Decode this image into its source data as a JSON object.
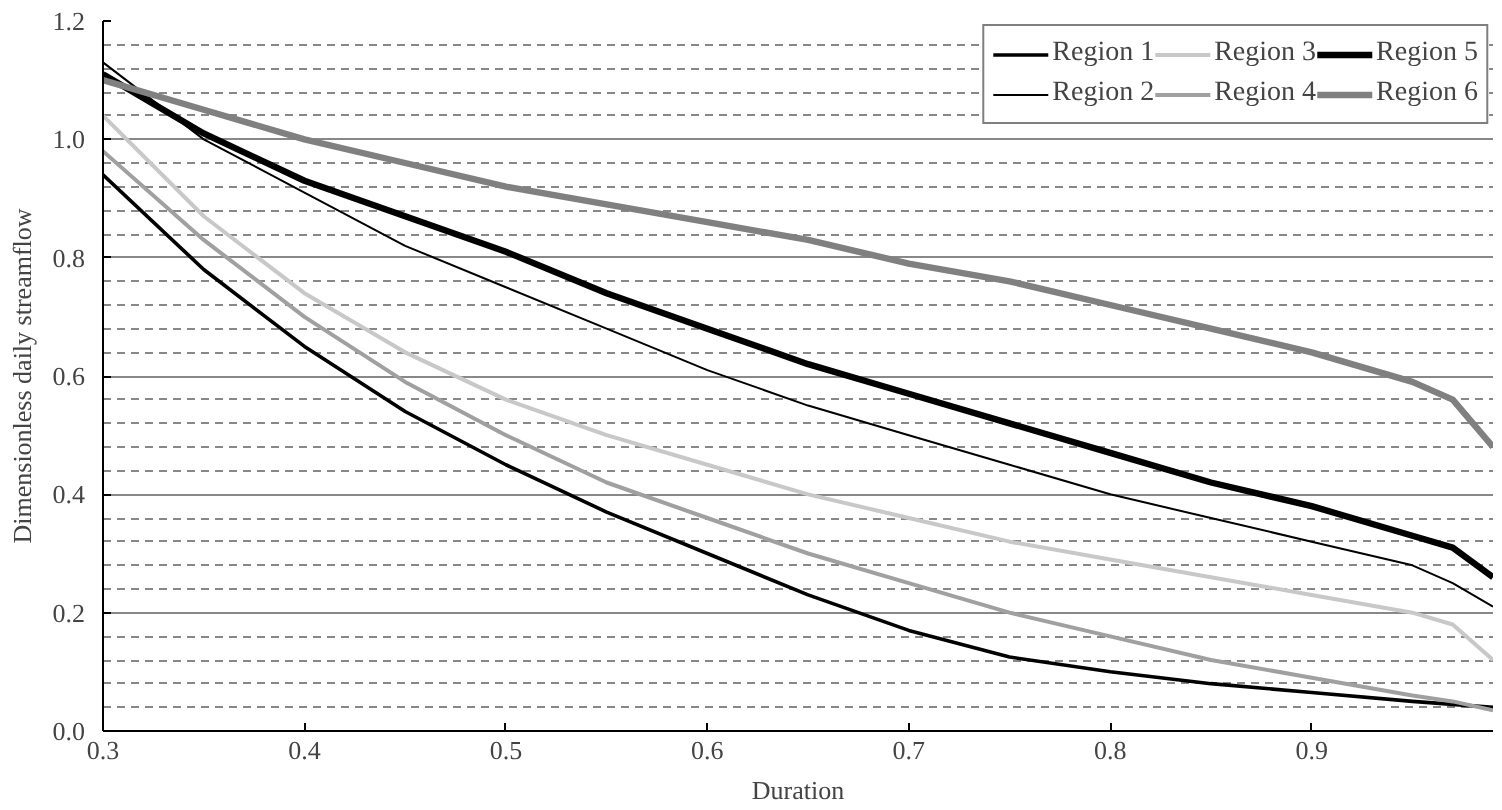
{
  "chart_data": {
    "type": "line",
    "xlabel": "Duration",
    "ylabel": "Dimensionless daily streamflow",
    "x": [
      0.3,
      0.35,
      0.4,
      0.45,
      0.5,
      0.55,
      0.6,
      0.65,
      0.7,
      0.75,
      0.8,
      0.85,
      0.9,
      0.95,
      0.97,
      0.99
    ],
    "xlim": [
      0.3,
      0.99
    ],
    "xticks": [
      0.3,
      0.4,
      0.5,
      0.6,
      0.7,
      0.8,
      0.9
    ],
    "ylim": [
      0,
      1.2
    ],
    "yticks": [
      {
        "value": 0,
        "label": "0.0"
      },
      {
        "value": 0.2,
        "label": "0.2"
      },
      {
        "value": 0.4,
        "label": "0.4"
      },
      {
        "value": 0.6,
        "label": "0.6"
      },
      {
        "value": 0.8,
        "label": "0.8"
      },
      {
        "value": 1.0,
        "label": "1.0"
      },
      {
        "value": 1.2,
        "label": "1.2"
      }
    ],
    "grid": "y",
    "legend": "top right",
    "marker": "none",
    "line_style": "solid",
    "series": [
      {
        "name": "Region 1",
        "color": "#000000",
        "values": [
          0.94,
          0.78,
          0.65,
          0.54,
          0.45,
          0.37,
          0.3,
          0.23,
          0.17,
          0.125,
          0.1,
          0.08,
          0.065,
          0.05,
          0.045,
          0.04
        ]
      },
      {
        "name": "Region 2",
        "color": "#000000",
        "values": [
          1.13,
          1.0,
          0.91,
          0.82,
          0.75,
          0.68,
          0.61,
          0.55,
          0.5,
          0.45,
          0.4,
          0.36,
          0.32,
          0.28,
          0.25,
          0.21
        ]
      },
      {
        "name": "Region 3",
        "color": "#c8c8c8",
        "values": [
          1.04,
          0.87,
          0.74,
          0.64,
          0.56,
          0.5,
          0.45,
          0.4,
          0.36,
          0.32,
          0.29,
          0.26,
          0.23,
          0.2,
          0.18,
          0.12
        ]
      },
      {
        "name": "Region 4",
        "color": "#a0a0a0",
        "values": [
          0.98,
          0.83,
          0.7,
          0.59,
          0.5,
          0.42,
          0.36,
          0.3,
          0.25,
          0.2,
          0.16,
          0.12,
          0.09,
          0.06,
          0.05,
          0.035
        ]
      },
      {
        "name": "Region 5",
        "color": "#000000",
        "values": [
          1.11,
          1.01,
          0.93,
          0.87,
          0.81,
          0.74,
          0.68,
          0.62,
          0.57,
          0.52,
          0.47,
          0.42,
          0.38,
          0.33,
          0.31,
          0.26
        ]
      },
      {
        "name": "Region 6",
        "color": "#808080",
        "values": [
          1.1,
          1.05,
          1.0,
          0.96,
          0.92,
          0.89,
          0.86,
          0.83,
          0.79,
          0.76,
          0.72,
          0.68,
          0.64,
          0.59,
          0.56,
          0.48
        ]
      }
    ]
  }
}
